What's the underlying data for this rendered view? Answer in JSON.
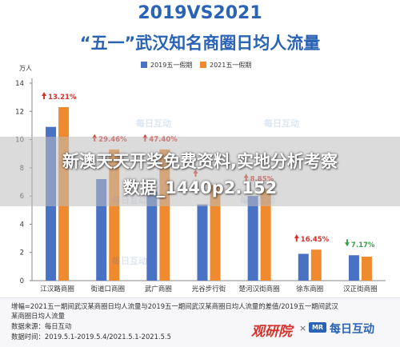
{
  "title": {
    "line1": "2019VS2021",
    "line2": "“五一”武汉知名商圈日均人流量"
  },
  "chart_data": {
    "type": "bar",
    "unit": "万人",
    "categories": [
      "江汉路商圈",
      "街道口商圈",
      "武广商圈",
      "光谷步行街",
      "楚河汉街商圈",
      "徐东商圈",
      "汉正街商圈"
    ],
    "series": [
      {
        "name": "2019五一假期",
        "values": [
          10.9,
          7.2,
          6.3,
          5.4,
          6.0,
          1.9,
          1.8
        ]
      },
      {
        "name": "2021五一假期",
        "values": [
          12.3,
          9.3,
          9.3,
          6.8,
          6.5,
          2.2,
          1.7
        ]
      }
    ],
    "changes": [
      {
        "label": "13.21%",
        "direction": "up"
      },
      {
        "label": "29.46%",
        "direction": "up"
      },
      {
        "label": "47.40%",
        "direction": "up"
      },
      {
        "label": "",
        "direction": "up"
      },
      {
        "label": "8.85%",
        "direction": "up"
      },
      {
        "label": "16.45%",
        "direction": "up"
      },
      {
        "label": "7.17%",
        "direction": "down"
      }
    ],
    "ylim": [
      0,
      14
    ],
    "yticks": [
      0,
      2,
      4,
      6,
      8,
      10,
      12,
      14
    ],
    "grid": false,
    "legend_position": "top-center",
    "watermark": "每日互动",
    "colors": {
      "series1": "#4a72c4",
      "series2": "#f08a2e",
      "up": "#d6312a",
      "down": "#3aa24a",
      "axis": "#888888",
      "text": "#333333"
    }
  },
  "overlay": {
    "line1": "新澳天天开奖免费资料,实地分析考察",
    "line2": "数据_1440p2.152"
  },
  "footer": {
    "note1": "增幅=2021五一期间武汉某商圈日均人流量与2019五一期间武汉某商圈日均人流量的差值/2019五一期间武汉",
    "note2": "某商圈日均人流量",
    "source": "数据来源：每日互动",
    "period": "数据时间：2019.5.1-2019.5.4/2021.5.1-2021.5.5",
    "brand1": "观研院",
    "brand_x": "×",
    "brand2_logo": "MR",
    "brand2": "每日互动"
  }
}
